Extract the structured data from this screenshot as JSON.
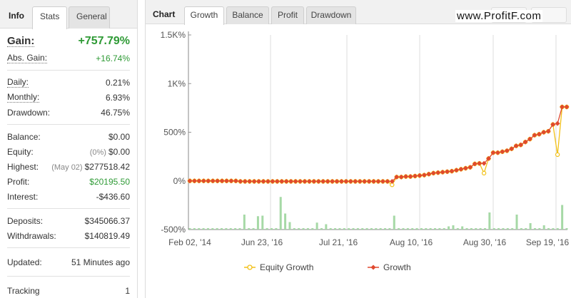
{
  "left_tabs": {
    "info": "Info",
    "stats": "Stats",
    "general": "General"
  },
  "stats": {
    "gain": {
      "label": "Gain:",
      "value": "+757.79%"
    },
    "abs_gain": {
      "label": "Abs. Gain:",
      "value": "+16.74%"
    },
    "daily": {
      "label": "Daily:",
      "value": "0.21%"
    },
    "monthly": {
      "label": "Monthly:",
      "value": "6.93%"
    },
    "drawdown": {
      "label": "Drawdown:",
      "value": "46.75%"
    },
    "balance": {
      "label": "Balance:",
      "value": "$0.00"
    },
    "equity": {
      "label": "Equity:",
      "note": "(0%)",
      "value": "$0.00"
    },
    "highest": {
      "label": "Highest:",
      "note": "(May 02)",
      "value": "$277518.42"
    },
    "profit": {
      "label": "Profit:",
      "value": "$20195.50"
    },
    "interest": {
      "label": "Interest:",
      "value": "-$436.60"
    },
    "deposits": {
      "label": "Deposits:",
      "value": "$345066.37"
    },
    "withdrawals": {
      "label": "Withdrawals:",
      "value": "$140819.49"
    },
    "updated": {
      "label": "Updated:",
      "value": "51 Minutes ago"
    },
    "tracking": {
      "label": "Tracking",
      "value": "1"
    }
  },
  "chart_tabs": {
    "label": "Chart",
    "growth": "Growth",
    "balance": "Balance",
    "profit": "Profit",
    "drawdown": "Drawdown"
  },
  "watermark": "www.ProfitF.com",
  "colors": {
    "growth": "#e0492f",
    "equity": "#f2c118",
    "bars": "#a6d9a6",
    "positive": "#2e9a35"
  },
  "chart_data": {
    "type": "line",
    "title": "",
    "y_ticks": [
      "1.5K%",
      "1K%",
      "500%",
      "0%",
      "-500%"
    ],
    "ylim": [
      -500,
      1500
    ],
    "x_ticks": [
      "Feb 02, '14",
      "Jun 23, '16",
      "Jul 21, '16",
      "Aug 10, '16",
      "Aug 30, '16",
      "Sep 19, '16"
    ],
    "legend": [
      "Equity Growth",
      "Growth"
    ],
    "series": [
      {
        "name": "Growth",
        "values": [
          0,
          0,
          0,
          0,
          0,
          0,
          0,
          0,
          0,
          0,
          0,
          -5,
          -5,
          -5,
          -5,
          -5,
          -5,
          -5,
          -5,
          -5,
          -5,
          -5,
          -5,
          -5,
          -5,
          -5,
          -5,
          -5,
          -5,
          -5,
          -5,
          -5,
          -5,
          -5,
          -5,
          -5,
          -5,
          -5,
          -5,
          -5,
          -5,
          -5,
          -5,
          -5,
          -5,
          40,
          40,
          45,
          45,
          50,
          55,
          60,
          70,
          80,
          85,
          90,
          95,
          100,
          110,
          120,
          130,
          140,
          175,
          180,
          180,
          230,
          290,
          290,
          300,
          310,
          330,
          360,
          370,
          400,
          430,
          470,
          480,
          500,
          510,
          580,
          590,
          760,
          760
        ]
      },
      {
        "name": "Equity Growth",
        "values": [
          0,
          0,
          0,
          0,
          0,
          0,
          0,
          0,
          0,
          0,
          0,
          -5,
          -5,
          -5,
          -5,
          -5,
          -5,
          -5,
          -5,
          -5,
          -5,
          -5,
          -5,
          -5,
          -5,
          -5,
          -5,
          -5,
          -5,
          -5,
          -5,
          -5,
          -5,
          -5,
          -5,
          -5,
          -5,
          -5,
          -5,
          -5,
          -5,
          -5,
          -5,
          -5,
          -40,
          40,
          40,
          45,
          45,
          50,
          55,
          60,
          70,
          80,
          85,
          90,
          95,
          100,
          110,
          120,
          130,
          140,
          175,
          180,
          80,
          230,
          290,
          290,
          300,
          310,
          330,
          360,
          370,
          400,
          430,
          470,
          480,
          500,
          510,
          580,
          270,
          760,
          760
        ]
      }
    ],
    "volume_bars": [
      0,
      0,
      0,
      0,
      0,
      0,
      0,
      0,
      0,
      0,
      0,
      0,
      140,
      0,
      0,
      125,
      130,
      0,
      0,
      0,
      305,
      150,
      70,
      0,
      0,
      0,
      0,
      0,
      65,
      0,
      50,
      0,
      0,
      0,
      0,
      0,
      0,
      0,
      0,
      0,
      0,
      0,
      0,
      0,
      0,
      130,
      0,
      0,
      0,
      0,
      0,
      0,
      0,
      0,
      0,
      0,
      0,
      30,
      40,
      0,
      30,
      0,
      0,
      0,
      0,
      0,
      160,
      0,
      0,
      0,
      0,
      0,
      140,
      0,
      0,
      60,
      0,
      0,
      40,
      0,
      0,
      0,
      230,
      0
    ]
  }
}
